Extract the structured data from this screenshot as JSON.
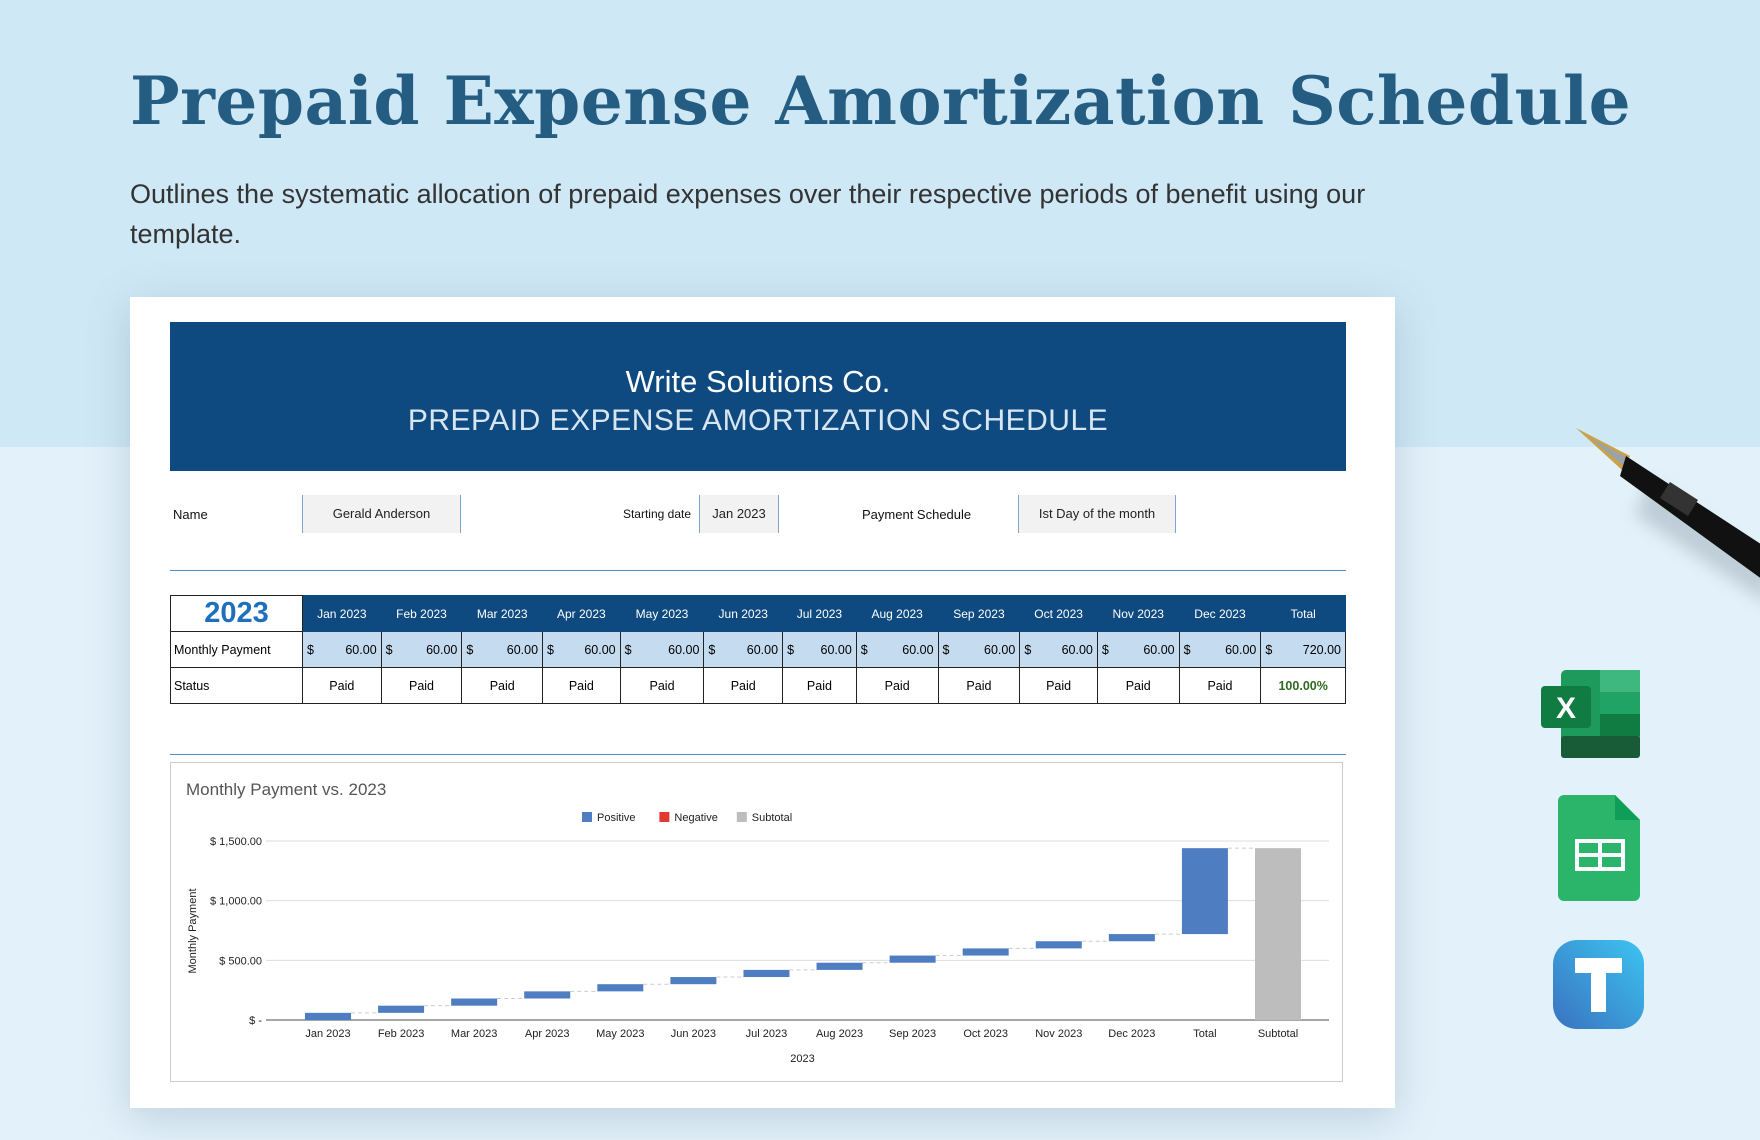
{
  "page": {
    "title": "Prepaid Expense Amortization Schedule",
    "subtitle": "Outlines the systematic allocation of prepaid expenses over their respective periods of benefit using our template."
  },
  "sheet": {
    "company": "Write Solutions Co.",
    "heading": "PREPAID EXPENSE AMORTIZATION SCHEDULE",
    "info": {
      "name_label": "Name",
      "name_value": "Gerald Anderson",
      "start_label": "Starting date",
      "start_value": "Jan 2023",
      "schedule_label": "Payment  Schedule",
      "schedule_value": "Ist Day of the month"
    },
    "table": {
      "year": "2023",
      "columns": [
        "Jan 2023",
        "Feb 2023",
        "Mar 2023",
        "Apr 2023",
        "May 2023",
        "Jun 2023",
        "Jul 2023",
        "Aug 2023",
        "Sep 2023",
        "Oct 2023",
        "Nov 2023",
        "Dec 2023",
        "Total"
      ],
      "payment_label": "Monthly Payment",
      "currency": "$",
      "payments": [
        "60.00",
        "60.00",
        "60.00",
        "60.00",
        "60.00",
        "60.00",
        "60.00",
        "60.00",
        "60.00",
        "60.00",
        "60.00",
        "60.00",
        "720.00"
      ],
      "status_label": "Status",
      "statuses": [
        "Paid",
        "Paid",
        "Paid",
        "Paid",
        "Paid",
        "Paid",
        "Paid",
        "Paid",
        "Paid",
        "Paid",
        "Paid",
        "Paid",
        "100.00%"
      ]
    }
  },
  "chart_data": {
    "type": "waterfall",
    "title": "Monthly Payment vs. 2023",
    "xlabel": "2023",
    "ylabel": "Monthly Payment",
    "ylim": [
      0,
      1500
    ],
    "yticks": [
      {
        "v": 0,
        "label": "$ -"
      },
      {
        "v": 500,
        "label": "$ 500.00"
      },
      {
        "v": 1000,
        "label": "$ 1,000.00"
      },
      {
        "v": 1500,
        "label": "$ 1,500.00"
      }
    ],
    "grid": true,
    "legend": {
      "position": "top",
      "entries": [
        {
          "name": "Positive",
          "color": "#4f7dc2"
        },
        {
          "name": "Negative",
          "color": "#e03a32"
        },
        {
          "name": "Subtotal",
          "color": "#bdbdbd"
        }
      ]
    },
    "categories": [
      "Jan 2023",
      "Feb 2023",
      "Mar 2023",
      "Apr 2023",
      "May 2023",
      "Jun 2023",
      "Jul 2023",
      "Aug 2023",
      "Sep 2023",
      "Oct 2023",
      "Nov 2023",
      "Dec 2023",
      "Total",
      "Subtotal"
    ],
    "bars": [
      {
        "start": 0,
        "end": 60,
        "kind": "Positive"
      },
      {
        "start": 60,
        "end": 120,
        "kind": "Positive"
      },
      {
        "start": 120,
        "end": 180,
        "kind": "Positive"
      },
      {
        "start": 180,
        "end": 240,
        "kind": "Positive"
      },
      {
        "start": 240,
        "end": 300,
        "kind": "Positive"
      },
      {
        "start": 300,
        "end": 360,
        "kind": "Positive"
      },
      {
        "start": 360,
        "end": 420,
        "kind": "Positive"
      },
      {
        "start": 420,
        "end": 480,
        "kind": "Positive"
      },
      {
        "start": 480,
        "end": 540,
        "kind": "Positive"
      },
      {
        "start": 540,
        "end": 600,
        "kind": "Positive"
      },
      {
        "start": 600,
        "end": 660,
        "kind": "Positive"
      },
      {
        "start": 660,
        "end": 720,
        "kind": "Positive"
      },
      {
        "start": 720,
        "end": 1440,
        "kind": "Positive"
      },
      {
        "start": 0,
        "end": 1440,
        "kind": "Subtotal"
      }
    ]
  },
  "colors": {
    "brand": "#0e4a80",
    "title": "#245c82",
    "payment_row": "#c5dcf0",
    "status_total": "#2d6a1e"
  },
  "icons": [
    "pen-icon",
    "excel-icon",
    "google-sheets-icon",
    "template-t-icon"
  ]
}
